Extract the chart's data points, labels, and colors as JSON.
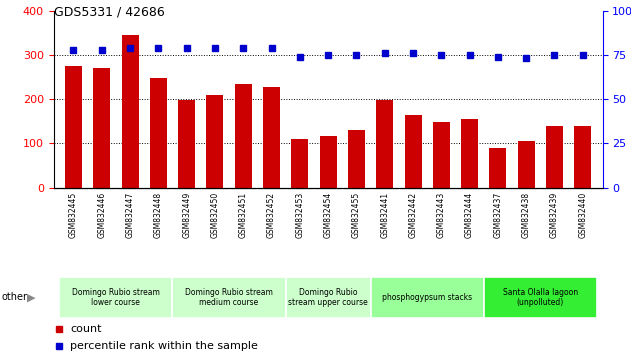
{
  "title": "GDS5331 / 42686",
  "samples": [
    "GSM832445",
    "GSM832446",
    "GSM832447",
    "GSM832448",
    "GSM832449",
    "GSM832450",
    "GSM832451",
    "GSM832452",
    "GSM832453",
    "GSM832454",
    "GSM832455",
    "GSM832441",
    "GSM832442",
    "GSM832443",
    "GSM832444",
    "GSM832437",
    "GSM832438",
    "GSM832439",
    "GSM832440"
  ],
  "counts": [
    275,
    270,
    345,
    248,
    197,
    210,
    235,
    228,
    110,
    117,
    130,
    197,
    163,
    148,
    154,
    90,
    105,
    140,
    140
  ],
  "percentiles": [
    78,
    78,
    79,
    79,
    79,
    79,
    79,
    79,
    74,
    75,
    75,
    76,
    76,
    75,
    75,
    74,
    73,
    75,
    75
  ],
  "bar_color": "#cc0000",
  "dot_color": "#0000cc",
  "left_ylim": [
    0,
    400
  ],
  "right_ylim": [
    0,
    100
  ],
  "left_yticks": [
    0,
    100,
    200,
    300,
    400
  ],
  "right_yticks": [
    0,
    25,
    50,
    75,
    100
  ],
  "right_yticklabels": [
    "0",
    "25",
    "50",
    "75",
    "100%"
  ],
  "groups": [
    {
      "label": "Domingo Rubio stream\nlower course",
      "start": 0,
      "end": 4,
      "color": "#ccffcc"
    },
    {
      "label": "Domingo Rubio stream\nmedium course",
      "start": 4,
      "end": 8,
      "color": "#ccffcc"
    },
    {
      "label": "Domingo Rubio\nstream upper course",
      "start": 8,
      "end": 11,
      "color": "#ccffcc"
    },
    {
      "label": "phosphogypsum stacks",
      "start": 11,
      "end": 15,
      "color": "#99ff99"
    },
    {
      "label": "Santa Olalla lagoon\n(unpolluted)",
      "start": 15,
      "end": 19,
      "color": "#33ee33"
    }
  ],
  "legend_count_label": "count",
  "legend_percentile_label": "percentile rank within the sample",
  "other_label": "other"
}
